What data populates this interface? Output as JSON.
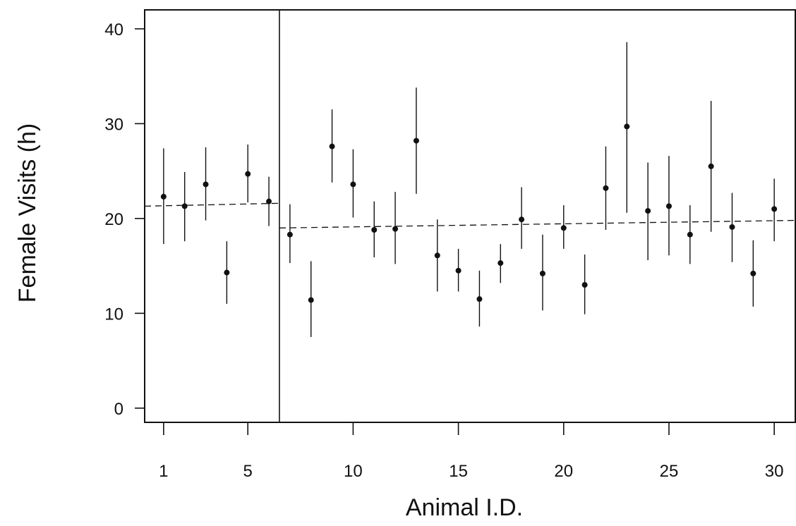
{
  "chart_data": {
    "type": "scatter",
    "title": "",
    "xlabel": "Animal I.D.",
    "ylabel": "Female Visits (h)",
    "xlim": [
      0.1,
      31
    ],
    "ylim": [
      -1.5,
      42
    ],
    "xticks": [
      1,
      5,
      10,
      15,
      20,
      25,
      30
    ],
    "yticks": [
      0,
      10,
      20,
      30,
      40
    ],
    "grid": false,
    "legend": "none",
    "group_divider_x": 6.5,
    "series": [
      {
        "x": [
          1,
          2,
          3,
          4,
          5,
          6,
          7,
          8,
          9,
          10,
          11,
          12,
          13,
          14,
          15,
          16,
          17,
          18,
          19,
          20,
          21,
          22,
          23,
          24,
          25,
          26,
          27,
          28,
          29,
          30
        ],
        "y": [
          22.3,
          21.3,
          23.6,
          14.3,
          24.7,
          21.8,
          18.3,
          11.4,
          27.6,
          23.6,
          18.8,
          18.9,
          28.2,
          16.1,
          14.5,
          11.5,
          15.3,
          19.9,
          14.2,
          19.0,
          13.0,
          23.2,
          29.7,
          20.8,
          21.3,
          18.3,
          25.5,
          19.1,
          14.2,
          21.0
        ],
        "y_low": [
          17.3,
          17.6,
          19.8,
          11.0,
          21.7,
          19.2,
          15.3,
          7.5,
          23.8,
          20.1,
          15.9,
          15.2,
          22.6,
          12.3,
          12.3,
          8.6,
          13.2,
          16.8,
          10.3,
          16.8,
          9.9,
          18.8,
          20.6,
          15.6,
          16.1,
          15.2,
          18.6,
          15.4,
          10.7,
          17.6
        ],
        "y_high": [
          27.4,
          24.9,
          27.5,
          17.6,
          27.8,
          24.4,
          21.5,
          15.5,
          31.5,
          27.3,
          21.8,
          22.8,
          33.8,
          19.9,
          16.8,
          14.5,
          17.3,
          23.3,
          18.3,
          21.4,
          16.2,
          27.6,
          38.6,
          25.9,
          26.6,
          21.4,
          32.4,
          22.7,
          17.7,
          24.2
        ]
      }
    ],
    "trend_lines": [
      {
        "x": [
          0.1,
          6.5
        ],
        "y": [
          21.3,
          21.6
        ]
      },
      {
        "x": [
          6.5,
          31
        ],
        "y": [
          19.0,
          19.8
        ]
      }
    ]
  }
}
